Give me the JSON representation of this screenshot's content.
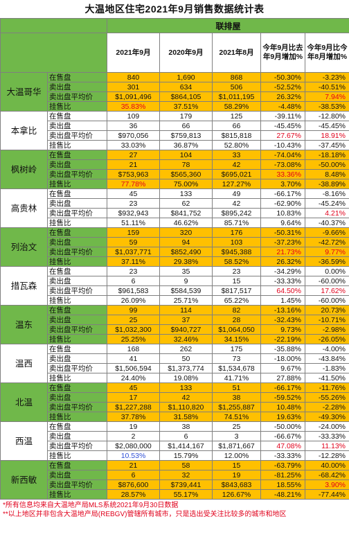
{
  "title": "大温地区住宅2021年9月销售数据统计表",
  "brand": "联排屋",
  "columns": [
    "2021年9月",
    "2020年9月",
    "2021年8月",
    "今年9月比去年9月增加%",
    "今年9月比今年8月增加%"
  ],
  "metrics": [
    "在售盘",
    "卖出盘",
    "卖出盘平均价",
    "挂售比"
  ],
  "regions": [
    {
      "name": "大温哥华",
      "rows": [
        [
          "840",
          "1,690",
          "868",
          "-50.30%",
          "-3.23%"
        ],
        [
          "301",
          "634",
          "506",
          "-52.52%",
          "-40.51%"
        ],
        [
          "$1,091,496",
          "$864,105",
          "$1,011,195",
          "26.32%",
          "7.94%"
        ],
        [
          "35.83%",
          "37.51%",
          "58.29%",
          "-4.48%",
          "-38.53%"
        ]
      ]
    },
    {
      "name": "本拿比",
      "rows": [
        [
          "109",
          "179",
          "125",
          "-39.11%",
          "-12.80%"
        ],
        [
          "36",
          "66",
          "66",
          "-45.45%",
          "-45.45%"
        ],
        [
          "$970,056",
          "$759,813",
          "$815,818",
          "27.67%",
          "18.91%"
        ],
        [
          "33.03%",
          "36.87%",
          "52.80%",
          "-10.43%",
          "-37.45%"
        ]
      ]
    },
    {
      "name": "枫树岭",
      "rows": [
        [
          "27",
          "104",
          "33",
          "-74.04%",
          "-18.18%"
        ],
        [
          "21",
          "78",
          "42",
          "-73.08%",
          "-50.00%"
        ],
        [
          "$753,963",
          "$565,360",
          "$695,021",
          "33.36%",
          "8.48%"
        ],
        [
          "77.78%",
          "75.00%",
          "127.27%",
          "3.70%",
          "-38.89%"
        ]
      ]
    },
    {
      "name": "高贵林",
      "rows": [
        [
          "45",
          "133",
          "49",
          "-66.17%",
          "-8.16%"
        ],
        [
          "23",
          "62",
          "42",
          "-62.90%",
          "-45.24%"
        ],
        [
          "$932,943",
          "$841,752",
          "$895,242",
          "10.83%",
          "4.21%"
        ],
        [
          "51.11%",
          "46.62%",
          "85.71%",
          "9.64%",
          "-40.37%"
        ]
      ]
    },
    {
      "name": "列治文",
      "rows": [
        [
          "159",
          "320",
          "176",
          "-50.31%",
          "-9.66%"
        ],
        [
          "59",
          "94",
          "103",
          "-37.23%",
          "-42.72%"
        ],
        [
          "$1,037,771",
          "$852,490",
          "$945,388",
          "21.73%",
          "9.77%"
        ],
        [
          "37.11%",
          "29.38%",
          "58.52%",
          "26.32%",
          "-36.59%"
        ]
      ]
    },
    {
      "name": "措瓦森",
      "rows": [
        [
          "23",
          "35",
          "23",
          "-34.29%",
          "0.00%"
        ],
        [
          "6",
          "9",
          "15",
          "-33.33%",
          "-60.00%"
        ],
        [
          "$961,583",
          "$584,539",
          "$817,517",
          "64.50%",
          "17.62%"
        ],
        [
          "26.09%",
          "25.71%",
          "65.22%",
          "1.45%",
          "-60.00%"
        ]
      ]
    },
    {
      "name": "温东",
      "rows": [
        [
          "99",
          "114",
          "82",
          "-13.16%",
          "20.73%"
        ],
        [
          "25",
          "37",
          "28",
          "-32.43%",
          "-10.71%"
        ],
        [
          "$1,032,300",
          "$940,727",
          "$1,064,050",
          "9.73%",
          "-2.98%"
        ],
        [
          "25.25%",
          "32.46%",
          "34.15%",
          "-22.19%",
          "-26.05%"
        ]
      ]
    },
    {
      "name": "温西",
      "rows": [
        [
          "168",
          "262",
          "175",
          "-35.88%",
          "-4.00%"
        ],
        [
          "41",
          "50",
          "73",
          "-18.00%",
          "-43.84%"
        ],
        [
          "$1,506,594",
          "$1,373,774",
          "$1,534,678",
          "9.67%",
          "-1.83%"
        ],
        [
          "24.40%",
          "19.08%",
          "41.71%",
          "27.88%",
          "-41.50%"
        ]
      ]
    },
    {
      "name": "北温",
      "rows": [
        [
          "45",
          "133",
          "51",
          "-66.17%",
          "-11.76%"
        ],
        [
          "17",
          "42",
          "38",
          "-59.52%",
          "-55.26%"
        ],
        [
          "$1,227,288",
          "$1,110,820",
          "$1,255,887",
          "10.48%",
          "-2.28%"
        ],
        [
          "37.78%",
          "31.58%",
          "74.51%",
          "19.63%",
          "-49.30%"
        ]
      ]
    },
    {
      "name": "西温",
      "rows": [
        [
          "19",
          "38",
          "25",
          "-50.00%",
          "-24.00%"
        ],
        [
          "2",
          "6",
          "3",
          "-66.67%",
          "-33.33%"
        ],
        [
          "$2,080,000",
          "$1,414,167",
          "$1,871,667",
          "47.08%",
          "11.13%"
        ],
        [
          "10.53%",
          "15.79%",
          "12.00%",
          "-33.33%",
          "-12.28%"
        ]
      ]
    },
    {
      "name": "新西敏",
      "rows": [
        [
          "21",
          "58",
          "15",
          "-63.79%",
          "40.00%"
        ],
        [
          "6",
          "32",
          "19",
          "-81.25%",
          "-68.42%"
        ],
        [
          "$876,600",
          "$739,441",
          "$843,683",
          "18.55%",
          "3.90%"
        ],
        [
          "28.57%",
          "55.17%",
          "126.67%",
          "-48.21%",
          "-77.44%"
        ]
      ]
    }
  ],
  "highlights": {
    "red": [
      "0.3.0",
      "0.2.4",
      "1.2.3",
      "1.2.4",
      "2.2.3",
      "2.3.0",
      "3.2.4",
      "4.2.3",
      "4.2.4",
      "5.2.3",
      "5.2.4",
      "9.2.3",
      "9.2.4",
      "10.2.4"
    ],
    "blue": [
      "9.3.0"
    ],
    "red_color": "#e0001b",
    "blue_color": "#2e4fd6"
  },
  "colors": {
    "green": "#70b84a",
    "orange": "#ffc000"
  },
  "notes": [
    "*所有信息均来自大温地产局MLS系统2021年9月30日数据",
    "**以上地区并非包含大温地产局(REBGV)管辖所有城市，只是选出受关注比较多的城市和地区"
  ]
}
